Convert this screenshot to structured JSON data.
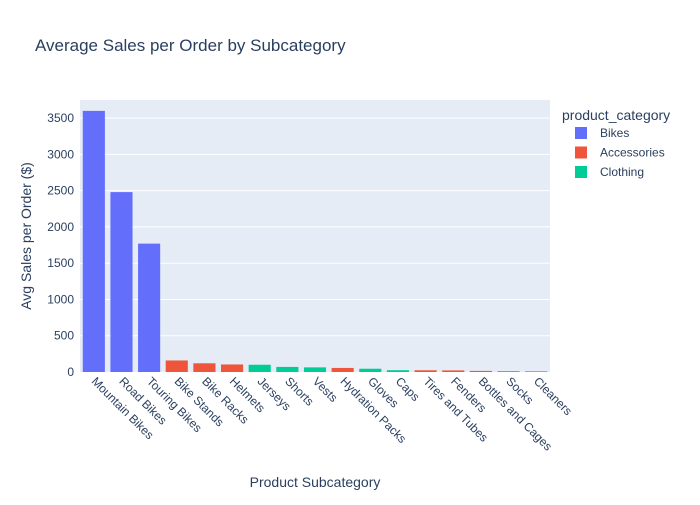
{
  "chart_data": {
    "type": "bar",
    "title": "Average Sales per Order by Subcategory",
    "xlabel": "Product Subcategory",
    "ylabel": "Avg Sales per Order ($)",
    "ylim": [
      0,
      3750
    ],
    "yticks": [
      0,
      500,
      1000,
      1500,
      2000,
      2500,
      3000,
      3500
    ],
    "grid": true,
    "legend": {
      "title": "product_category",
      "placement": "top-right",
      "entries": [
        {
          "name": "Bikes",
          "color": "#636efa"
        },
        {
          "name": "Accessories",
          "color": "#ef553b"
        },
        {
          "name": "Clothing",
          "color": "#00cc96"
        }
      ]
    },
    "categories": [
      "Mountain Bikes",
      "Road Bikes",
      "Touring Bikes",
      "Bike Stands",
      "Bike Racks",
      "Helmets",
      "Jerseys",
      "Shorts",
      "Vests",
      "Hydration Packs",
      "Gloves",
      "Caps",
      "Tires and Tubes",
      "Fenders",
      "Bottles and Cages",
      "Socks",
      "Cleaners"
    ],
    "series_of_category": [
      "Bikes",
      "Bikes",
      "Bikes",
      "Accessories",
      "Accessories",
      "Accessories",
      "Clothing",
      "Clothing",
      "Clothing",
      "Accessories",
      "Clothing",
      "Clothing",
      "Accessories",
      "Accessories",
      "Accessories",
      "Clothing",
      "Accessories"
    ],
    "values": [
      3600,
      2480,
      1770,
      159,
      120,
      104,
      100,
      70,
      64,
      56,
      45,
      25,
      24,
      22,
      15,
      12,
      9
    ]
  }
}
